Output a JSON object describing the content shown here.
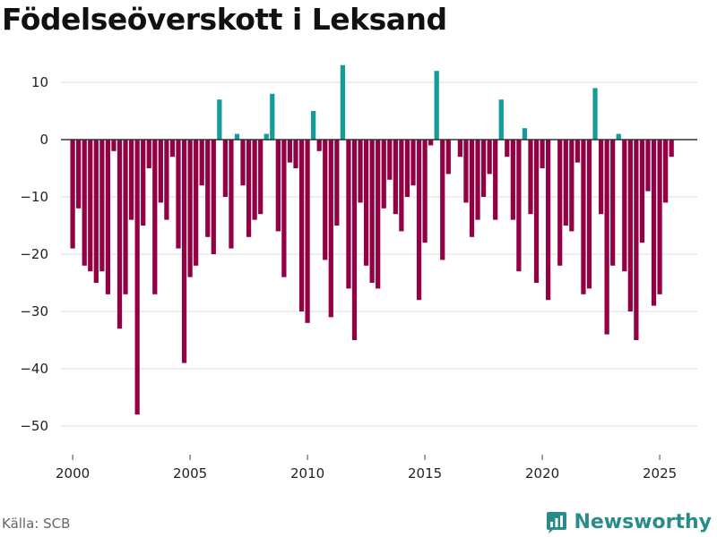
{
  "title": "Födelseöverskott i Leksand",
  "source": "Källa: SCB",
  "brand": "Newsworthy",
  "colors": {
    "positive": "#139c98",
    "negative": "#930044",
    "brand": "#2a8c88"
  },
  "chart_data": {
    "type": "bar",
    "title": "Födelseöverskott i Leksand",
    "xlabel": "",
    "ylabel": "",
    "ylim": [
      -55,
      15
    ],
    "xlim": [
      1999.5,
      2026.6
    ],
    "yticks": [
      10,
      0,
      -10,
      -20,
      -30,
      -40,
      -50
    ],
    "ytick_labels": [
      "10",
      "0",
      "−10",
      "−20",
      "−30",
      "−40",
      "−50"
    ],
    "xticks": [
      2000,
      2005,
      2010,
      2015,
      2020,
      2025
    ],
    "xtick_labels": [
      "2000",
      "2005",
      "2010",
      "2015",
      "2020",
      "2025"
    ],
    "grid": "horizontal",
    "frequency": "quarterly",
    "start": 2000.0,
    "step": 0.25,
    "values": [
      -19,
      -12,
      -22,
      -23,
      -25,
      -23,
      -27,
      -2,
      -33,
      -27,
      -14,
      -48,
      -15,
      -5,
      -27,
      -11,
      -14,
      -3,
      -19,
      -39,
      -24,
      -22,
      -8,
      -17,
      -20,
      7,
      -10,
      -19,
      1,
      -8,
      -17,
      -14,
      -13,
      1,
      8,
      -16,
      -24,
      -4,
      -5,
      -30,
      -32,
      5,
      -2,
      -21,
      -31,
      -15,
      13,
      -26,
      -35,
      -11,
      -22,
      -25,
      -26,
      -12,
      -7,
      -13,
      -16,
      -10,
      -8,
      -28,
      -18,
      -1,
      12,
      -21,
      -6,
      0,
      -3,
      -11,
      -17,
      -14,
      -10,
      -6,
      -14,
      7,
      -3,
      -14,
      -23,
      2,
      -13,
      -25,
      -5,
      -28,
      0,
      -22,
      -15,
      -16,
      -4,
      -27,
      -26,
      9,
      -13,
      -34,
      -22,
      1,
      -23,
      -30,
      -35,
      -18,
      -9,
      -29,
      -27,
      -11,
      -3
    ]
  }
}
